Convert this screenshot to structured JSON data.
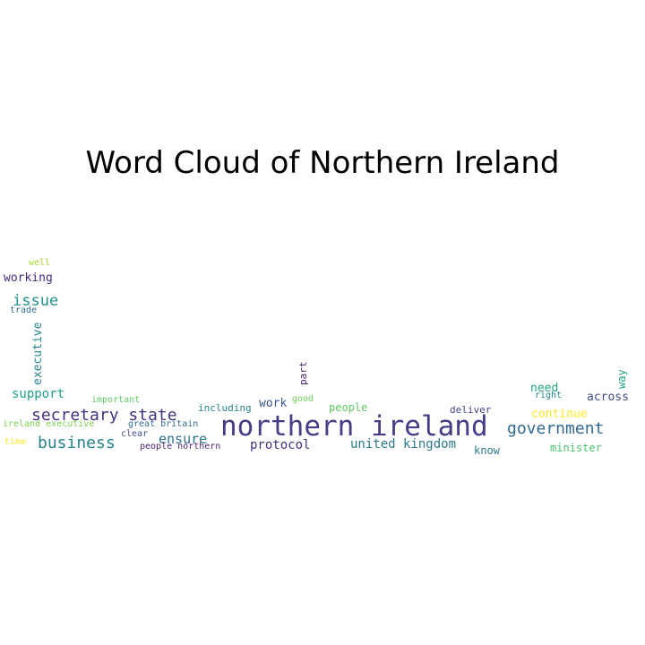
{
  "chart_data": {
    "type": "wordcloud",
    "title": "Word Cloud of Northern Ireland",
    "colormap": "viridis",
    "words": [
      {
        "text": "northern ireland",
        "color": "#433e85"
      },
      {
        "text": "secretary state",
        "color": "#46327e"
      },
      {
        "text": "business",
        "color": "#26828e"
      },
      {
        "text": "government",
        "color": "#31688e"
      },
      {
        "text": "issue",
        "color": "#21918c"
      },
      {
        "text": "support",
        "color": "#1fa187"
      },
      {
        "text": "protocol",
        "color": "#472d7b"
      },
      {
        "text": "united kingdom",
        "color": "#2a788e"
      },
      {
        "text": "ensure",
        "color": "#2c728e"
      },
      {
        "text": "working",
        "color": "#482878"
      },
      {
        "text": "executive",
        "color": "#25858e"
      },
      {
        "text": "work",
        "color": "#3b528b"
      },
      {
        "text": "people",
        "color": "#5ec962"
      },
      {
        "text": "need",
        "color": "#22a884"
      },
      {
        "text": "across",
        "color": "#3e4989"
      },
      {
        "text": "continue",
        "color": "#fde725"
      },
      {
        "text": "minister",
        "color": "#4ac16d"
      },
      {
        "text": "know",
        "color": "#2a788e"
      },
      {
        "text": "way",
        "color": "#20a386"
      },
      {
        "text": "part",
        "color": "#482173"
      },
      {
        "text": "deliver",
        "color": "#414487"
      },
      {
        "text": "right",
        "color": "#24868e"
      },
      {
        "text": "including",
        "color": "#26828e"
      },
      {
        "text": "good",
        "color": "#6ece58"
      },
      {
        "text": "important",
        "color": "#5ec962"
      },
      {
        "text": "great britain",
        "color": "#31688e"
      },
      {
        "text": "clear",
        "color": "#3b528b"
      },
      {
        "text": "people northern",
        "color": "#481f70"
      },
      {
        "text": "ireland executive",
        "color": "#7ad151"
      },
      {
        "text": "time",
        "color": "#fde725"
      },
      {
        "text": "trade",
        "color": "#2e6f8e"
      },
      {
        "text": "well",
        "color": "#a5db36"
      }
    ]
  }
}
